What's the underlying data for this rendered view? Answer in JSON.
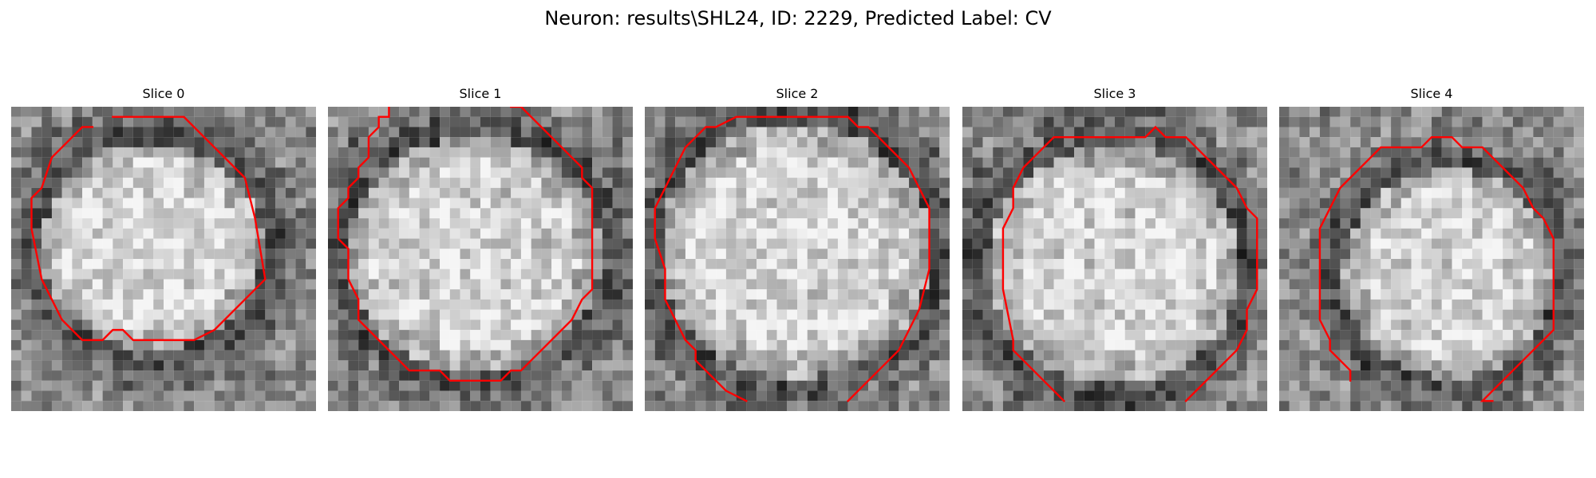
{
  "figure": {
    "title": "Neuron: results\\SHL24, ID: 2229, Predicted Label: CV"
  },
  "slices": [
    {
      "title": "Slice 0"
    },
    {
      "title": "Slice 1"
    },
    {
      "title": "Slice 2"
    },
    {
      "title": "Slice 3"
    },
    {
      "title": "Slice 4"
    }
  ],
  "colors": {
    "contour": "#ff0000",
    "background": "#ffffff"
  }
}
